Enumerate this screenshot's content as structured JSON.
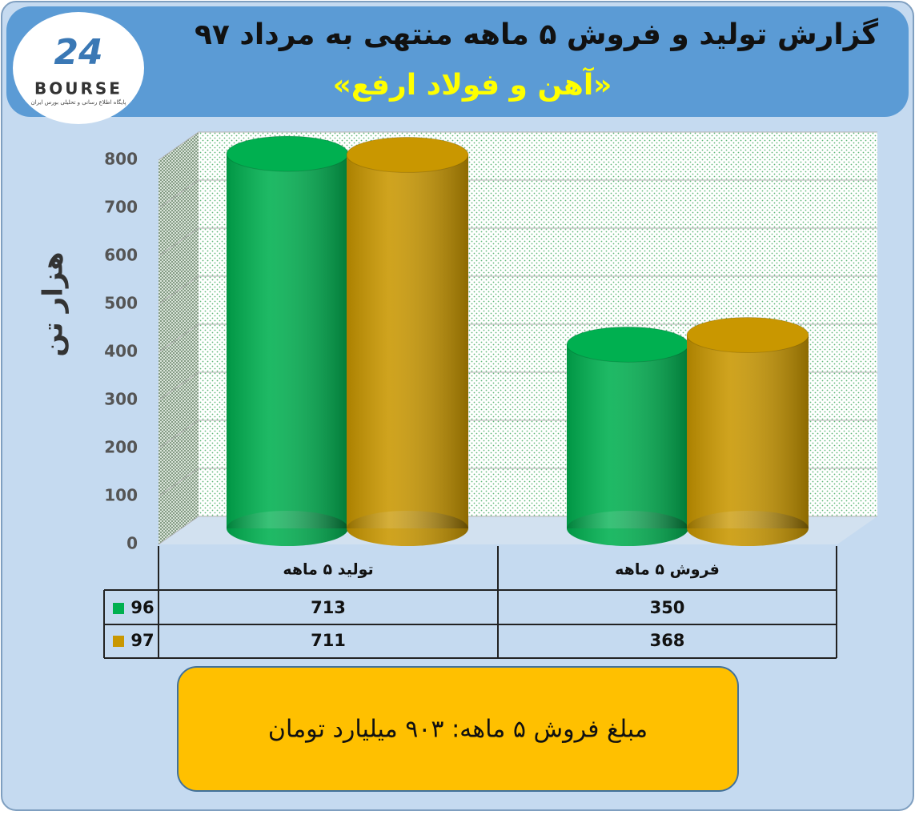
{
  "logo": {
    "number": "24",
    "name": "BOURSE",
    "caption": "پایگاه اطلاع رسانی و تحلیلی بورس ایران"
  },
  "chart_data": {
    "type": "bar",
    "title": "گزارش تولید و فروش ۵ ماهه منتهی به مرداد ۹۷",
    "subtitle": "«آهن و فولاد ارفع»",
    "y_label": "هزار تن",
    "categories": [
      "تولید ۵ ماهه",
      "فروش ۵ ماهه"
    ],
    "series": [
      {
        "name": "96",
        "color": "#00b050",
        "values": [
          713,
          350
        ]
      },
      {
        "name": "97",
        "color": "#c99700",
        "values": [
          711,
          368
        ]
      }
    ],
    "ylim": [
      0,
      800
    ],
    "yticks": [
      0,
      100,
      200,
      300,
      400,
      500,
      600,
      700,
      800
    ],
    "grid": true
  },
  "footer": "مبلغ فروش ۵ ماهه: ۹۰۳ میلیارد تومان"
}
